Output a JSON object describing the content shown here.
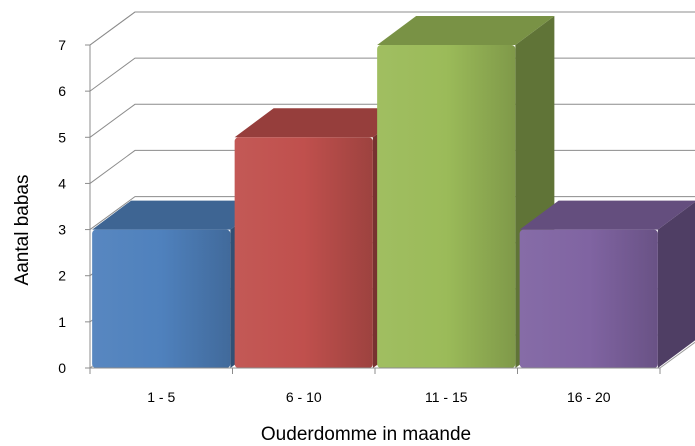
{
  "chart_data": {
    "type": "bar",
    "title": "",
    "xlabel": "Ouderdomme in maande",
    "ylabel": "Aantal babas",
    "categories": [
      "1 - 5",
      "6 - 10",
      "11 - 15",
      "16 - 20"
    ],
    "values": [
      3,
      5,
      7,
      3
    ],
    "ylim": [
      0,
      7
    ],
    "yticks": [
      "0",
      "1",
      "2",
      "3",
      "4",
      "5",
      "6",
      "7"
    ],
    "grid": true,
    "three_d": true,
    "bar_colors": [
      "#4f81bd",
      "#c0504d",
      "#9bbb59",
      "#8064a2"
    ]
  }
}
